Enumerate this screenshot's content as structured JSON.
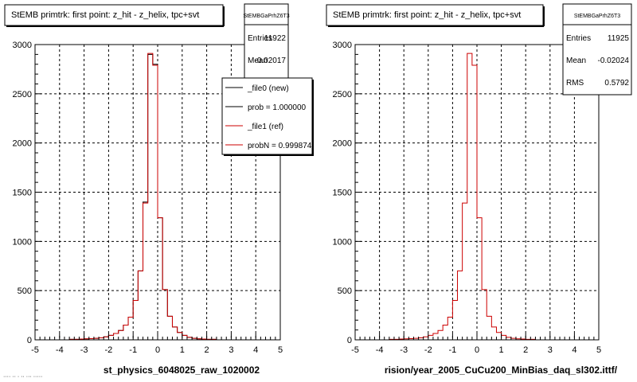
{
  "footer_text": "···· ·· · ·· ··· ·····",
  "chart_data": [
    {
      "type": "bar",
      "title": "StEMB primtrk: first point: z_hit - z_helix, tpc+svt",
      "xlabel": "st_physics_6048025_raw_1020002",
      "ylabel": "",
      "xlim": [
        -5,
        5
      ],
      "ylim": [
        0,
        3000
      ],
      "xticks": [
        "-5",
        "-4",
        "-3",
        "-2",
        "-1",
        "0",
        "1",
        "2",
        "3",
        "4",
        "5"
      ],
      "yticks": [
        "0",
        "500",
        "1000",
        "1500",
        "2000",
        "2500",
        "3000"
      ],
      "grid": true,
      "stats": {
        "name": "StEMBGaPrhZ6T3",
        "rows": [
          {
            "label": "Entries",
            "value": "11922"
          },
          {
            "label": "Mean",
            "value": "-0.02017"
          }
        ]
      },
      "legend": {
        "placement": "top-right",
        "entries": [
          {
            "label": "_file0 (new)",
            "color": "#000000"
          },
          {
            "label": "prob = 1.000000",
            "color": "#000000"
          },
          {
            "label": "_file1 (ref)",
            "color": "#cc0000"
          },
          {
            "label": "probN = 0.999874",
            "color": "#cc0000"
          }
        ]
      },
      "bin_width": 0.2,
      "x": [
        -4.9,
        -4.7,
        -4.5,
        -4.3,
        -4.1,
        -3.9,
        -3.7,
        -3.5,
        -3.3,
        -3.1,
        -2.9,
        -2.7,
        -2.5,
        -2.3,
        -2.1,
        -1.9,
        -1.7,
        -1.5,
        -1.3,
        -1.1,
        -0.9,
        -0.7,
        -0.5,
        -0.3,
        -0.1,
        0.1,
        0.3,
        0.5,
        0.7,
        0.9,
        1.1,
        1.3,
        1.5,
        1.7,
        1.9,
        2.1,
        2.3,
        2.5,
        2.7,
        2.9,
        3.1,
        3.3,
        3.5,
        3.7,
        3.9,
        4.1,
        4.3,
        4.5,
        4.7,
        4.9
      ],
      "series": [
        {
          "name": "_file0 (new)",
          "color": "#000000",
          "values": [
            0,
            0,
            0,
            0,
            0,
            0,
            0,
            5,
            5,
            8,
            10,
            12,
            15,
            20,
            30,
            45,
            65,
            95,
            150,
            230,
            400,
            700,
            1400,
            2900,
            2800,
            1240,
            510,
            240,
            130,
            75,
            45,
            25,
            15,
            10,
            8,
            5,
            5,
            0,
            0,
            0,
            0,
            0,
            0,
            0,
            0,
            0,
            0,
            0,
            0,
            0
          ]
        },
        {
          "name": "_file1 (ref)",
          "color": "#cc0000",
          "values": [
            0,
            0,
            0,
            0,
            0,
            0,
            0,
            5,
            5,
            8,
            10,
            12,
            15,
            20,
            30,
            45,
            65,
            95,
            150,
            230,
            400,
            700,
            1390,
            2910,
            2790,
            1240,
            510,
            240,
            130,
            75,
            45,
            25,
            15,
            10,
            8,
            5,
            5,
            0,
            0,
            0,
            0,
            0,
            0,
            0,
            0,
            0,
            0,
            0,
            0,
            0
          ]
        }
      ]
    },
    {
      "type": "bar",
      "title": "StEMB primtrk: first point: z_hit - z_helix, tpc+svt",
      "xlabel": "rision/year_2005_CuCu200_MinBias_daq_sl302.ittf/",
      "ylabel": "",
      "xlim": [
        -5,
        5
      ],
      "ylim": [
        0,
        3000
      ],
      "xticks": [
        "-5",
        "-4",
        "-3",
        "-2",
        "-1",
        "0",
        "1",
        "2",
        "3",
        "4",
        "5"
      ],
      "yticks": [
        "0",
        "500",
        "1000",
        "1500",
        "2000",
        "2500",
        "3000"
      ],
      "grid": true,
      "stats": {
        "name": "StEMBGaPrhZ6T3",
        "rows": [
          {
            "label": "Entries",
            "value": "11925"
          },
          {
            "label": "Mean",
            "value": "-0.02024"
          },
          {
            "label": "RMS",
            "value": "0.5792"
          }
        ]
      },
      "bin_width": 0.2,
      "x": [
        -4.9,
        -4.7,
        -4.5,
        -4.3,
        -4.1,
        -3.9,
        -3.7,
        -3.5,
        -3.3,
        -3.1,
        -2.9,
        -2.7,
        -2.5,
        -2.3,
        -2.1,
        -1.9,
        -1.7,
        -1.5,
        -1.3,
        -1.1,
        -0.9,
        -0.7,
        -0.5,
        -0.3,
        -0.1,
        0.1,
        0.3,
        0.5,
        0.7,
        0.9,
        1.1,
        1.3,
        1.5,
        1.7,
        1.9,
        2.1,
        2.3,
        2.5,
        2.7,
        2.9,
        3.1,
        3.3,
        3.5,
        3.7,
        3.9,
        4.1,
        4.3,
        4.5,
        4.7,
        4.9
      ],
      "series": [
        {
          "color": "#cc0000",
          "values": [
            0,
            0,
            0,
            0,
            0,
            0,
            0,
            5,
            5,
            8,
            10,
            12,
            15,
            20,
            30,
            45,
            65,
            95,
            150,
            230,
            400,
            700,
            1390,
            2910,
            2790,
            1240,
            510,
            240,
            130,
            75,
            45,
            25,
            15,
            10,
            8,
            5,
            5,
            0,
            0,
            0,
            0,
            0,
            0,
            0,
            0,
            0,
            0,
            0,
            0,
            0
          ]
        }
      ]
    }
  ]
}
